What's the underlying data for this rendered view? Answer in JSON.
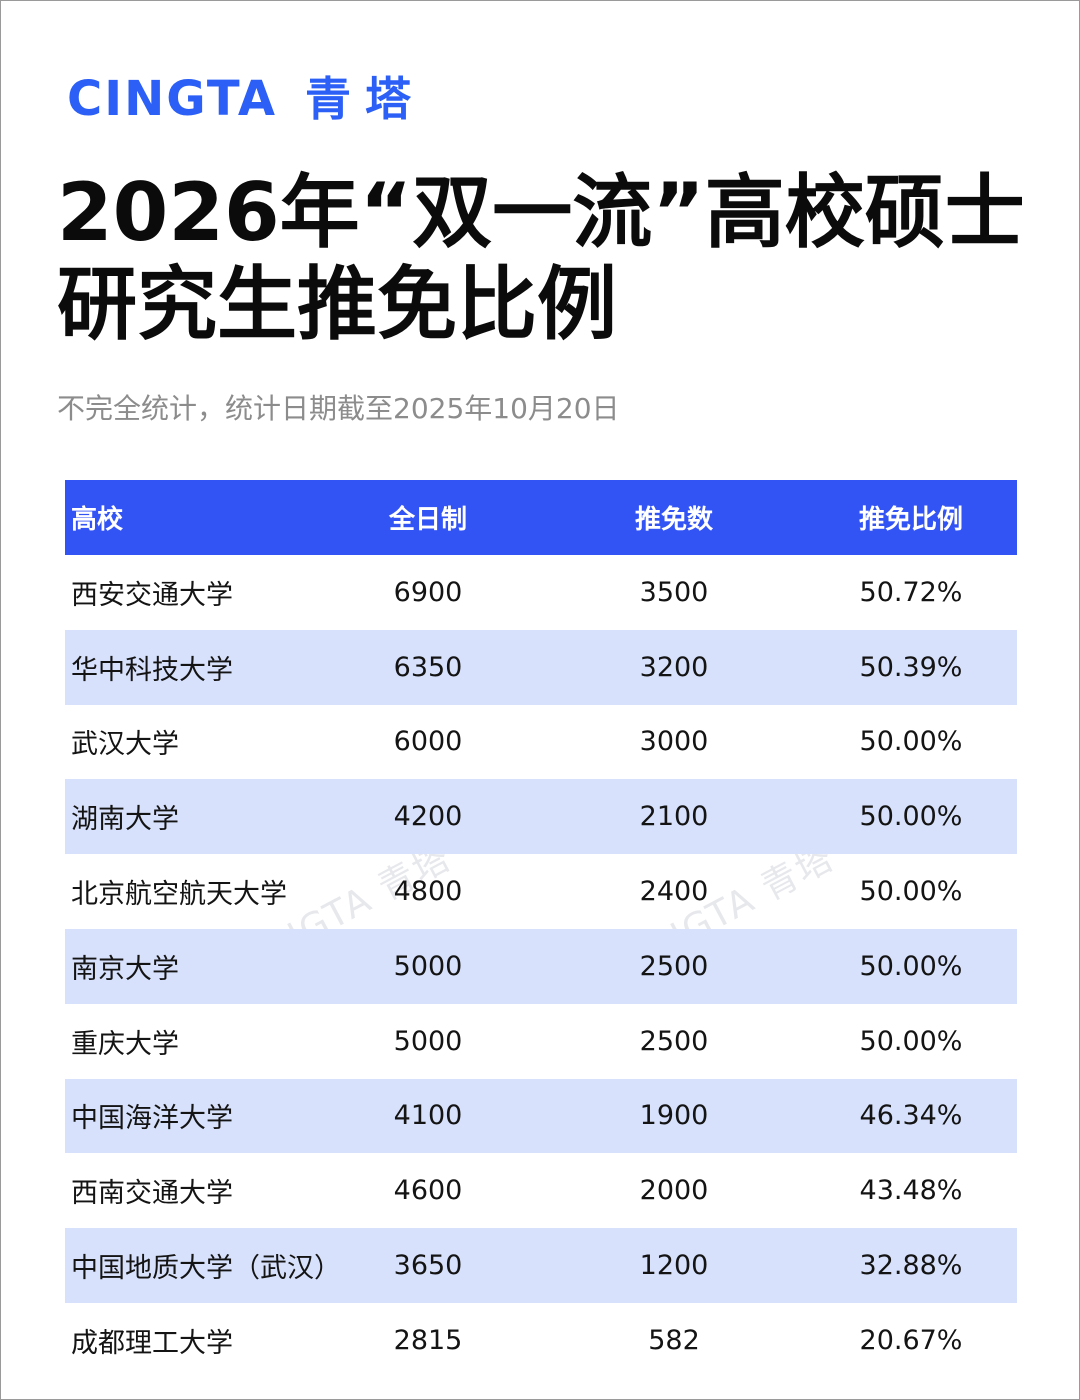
{
  "brand": {
    "latin": "CINGTA",
    "chinese": "青塔"
  },
  "title": "2026年“双一流”高校硕士研究生推免比例",
  "subtitle": "不完全统计，统计日期截至2025年10月20日",
  "watermark": "CINGTA 青塔",
  "colors": {
    "brand_blue": "#2b5ff6",
    "header_bg": "#3354f5",
    "stripe_bg": "#d7e1fb"
  },
  "table": {
    "headers": [
      "高校",
      "全日制",
      "推免数",
      "推免比例"
    ],
    "rows": [
      [
        "西安交通大学",
        "6900",
        "3500",
        "50.72%"
      ],
      [
        "华中科技大学",
        "6350",
        "3200",
        "50.39%"
      ],
      [
        "武汉大学",
        "6000",
        "3000",
        "50.00%"
      ],
      [
        "湖南大学",
        "4200",
        "2100",
        "50.00%"
      ],
      [
        "北京航空航天大学",
        "4800",
        "2400",
        "50.00%"
      ],
      [
        "南京大学",
        "5000",
        "2500",
        "50.00%"
      ],
      [
        "重庆大学",
        "5000",
        "2500",
        "50.00%"
      ],
      [
        "中国海洋大学",
        "4100",
        "1900",
        "46.34%"
      ],
      [
        "西南交通大学",
        "4600",
        "2000",
        "43.48%"
      ],
      [
        "中国地质大学（武汉）",
        "3650",
        "1200",
        "32.88%"
      ],
      [
        "成都理工大学",
        "2815",
        "582",
        "20.67%"
      ]
    ]
  }
}
